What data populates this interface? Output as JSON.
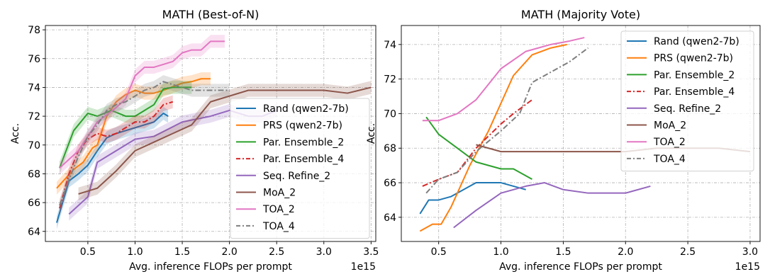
{
  "chart_data": [
    {
      "type": "line",
      "title": "MATH (Best-of-N)",
      "xlabel": "Avg. inference FLOPs per prompt",
      "ylabel": "Acc.",
      "x_offset_label": "1e15",
      "xlim": [
        0.05,
        3.55
      ],
      "ylim": [
        63.3,
        78.3
      ],
      "xticks": [
        0.5,
        1.0,
        1.5,
        2.0,
        2.5,
        3.0,
        3.5
      ],
      "xtick_labels": [
        "0.5",
        "1.0",
        "1.5",
        "2.0",
        "2.5",
        "3.0",
        "3.5"
      ],
      "yticks": [
        64,
        66,
        68,
        70,
        72,
        74,
        76,
        78
      ],
      "ytick_labels": [
        "64",
        "66",
        "68",
        "70",
        "72",
        "74",
        "76",
        "78"
      ],
      "grid": true,
      "legend_position": "lower-right",
      "series": [
        {
          "name": "Rand (qwen2-7b)",
          "color": "#1f77b4",
          "dash": "solid",
          "band": true,
          "x": [
            0.17,
            0.3,
            0.4,
            0.5,
            0.6,
            0.7,
            0.8,
            0.9,
            1.0,
            1.1,
            1.2,
            1.3,
            1.35
          ],
          "y": [
            64.6,
            67.5,
            68.0,
            68.6,
            69.6,
            70.5,
            70.8,
            71.0,
            71.2,
            71.4,
            71.6,
            72.2,
            72.0
          ]
        },
        {
          "name": "PRS (qwen2-7b)",
          "color": "#ff7f0e",
          "dash": "solid",
          "band": true,
          "x": [
            0.17,
            0.35,
            0.45,
            0.55,
            0.6,
            0.7,
            0.8,
            0.9,
            1.0,
            1.1,
            1.2,
            1.3,
            1.5,
            1.6,
            1.7,
            1.8
          ],
          "y": [
            67.0,
            68.3,
            68.8,
            69.8,
            70.0,
            72.0,
            73.0,
            73.5,
            73.8,
            73.6,
            73.6,
            73.8,
            74.3,
            74.4,
            74.6,
            74.6
          ]
        },
        {
          "name": "Par. Ensemble_2",
          "color": "#2ca02c",
          "dash": "solid",
          "band": true,
          "x": [
            0.2,
            0.35,
            0.5,
            0.6,
            0.75,
            0.9,
            1.0,
            1.1,
            1.2,
            1.3,
            1.4,
            1.6
          ],
          "y": [
            68.4,
            71.0,
            72.2,
            72.0,
            72.4,
            72.0,
            72.0,
            72.4,
            72.8,
            73.9,
            74.0,
            74.0
          ]
        },
        {
          "name": "Par. Ensemble_4",
          "color": "#d62728",
          "dash": "dashdot",
          "band": true,
          "x": [
            0.2,
            0.3,
            0.4,
            0.5,
            0.6,
            0.7,
            0.8,
            0.9,
            1.0,
            1.1,
            1.2,
            1.3,
            1.4
          ],
          "y": [
            65.6,
            68.0,
            69.6,
            70.4,
            70.8,
            70.6,
            70.8,
            71.2,
            71.6,
            71.6,
            72.0,
            72.8,
            73.0
          ]
        },
        {
          "name": "Seq. Refine_2",
          "color": "#9467bd",
          "dash": "solid",
          "band": true,
          "x": [
            0.3,
            0.5,
            0.6,
            0.7,
            0.8,
            1.0,
            1.2,
            1.5,
            1.8,
            2.0,
            2.2,
            2.35,
            2.5
          ],
          "y": [
            65.2,
            66.4,
            68.8,
            69.2,
            69.6,
            70.4,
            70.6,
            71.6,
            72.0,
            72.4,
            72.0,
            72.0,
            72.4
          ]
        },
        {
          "name": "MoA_2",
          "color": "#8c564b",
          "dash": "solid",
          "band": true,
          "x": [
            0.4,
            0.6,
            0.8,
            1.0,
            1.2,
            1.4,
            1.6,
            1.8,
            2.0,
            2.2,
            2.5,
            3.0,
            3.25,
            3.5
          ],
          "y": [
            66.6,
            67.0,
            68.2,
            69.6,
            70.2,
            70.8,
            71.4,
            73.0,
            73.4,
            73.8,
            73.8,
            73.8,
            73.6,
            74.0
          ]
        },
        {
          "name": "TOA_2",
          "color": "#e377c2",
          "dash": "solid",
          "band": true,
          "x": [
            0.2,
            0.4,
            0.6,
            0.8,
            0.9,
            1.0,
            1.1,
            1.2,
            1.3,
            1.4,
            1.5,
            1.6,
            1.7,
            1.8,
            1.95
          ],
          "y": [
            68.4,
            69.6,
            71.6,
            72.6,
            73.2,
            74.8,
            75.4,
            75.4,
            75.6,
            75.8,
            76.4,
            76.6,
            76.6,
            77.2,
            77.2
          ]
        },
        {
          "name": "TOA_4",
          "color": "#7f7f7f",
          "dash": "dashdot",
          "band": true,
          "x": [
            0.2,
            0.3,
            0.4,
            0.5,
            0.6,
            0.7,
            0.8,
            0.9,
            1.0,
            1.1,
            1.2,
            1.3,
            1.4,
            1.6,
            1.8,
            2.0
          ],
          "y": [
            65.8,
            67.6,
            69.2,
            70.6,
            71.4,
            72.4,
            72.8,
            73.0,
            73.4,
            73.8,
            74.0,
            74.4,
            74.2,
            73.8,
            73.8,
            73.8
          ]
        }
      ]
    },
    {
      "type": "line",
      "title": "MATH (Majority Vote)",
      "xlabel": "Avg. inference FLOPs per prompt",
      "ylabel": "Acc.",
      "x_offset_label": "1e15",
      "xlim": [
        0.2,
        3.08
      ],
      "ylim": [
        62.6,
        75.1
      ],
      "xticks": [
        0.5,
        1.0,
        1.5,
        2.0,
        2.5,
        3.0
      ],
      "xtick_labels": [
        "0.5",
        "1.0",
        "1.5",
        "2.0",
        "2.5",
        "3.0"
      ],
      "yticks": [
        64,
        66,
        68,
        70,
        72,
        74
      ],
      "ytick_labels": [
        "64",
        "66",
        "68",
        "70",
        "72",
        "74"
      ],
      "grid": true,
      "legend_position": "upper-right",
      "series": [
        {
          "name": "Rand (qwen2-7b)",
          "color": "#1f77b4",
          "dash": "solid",
          "band": false,
          "x": [
            0.35,
            0.42,
            0.5,
            0.6,
            0.8,
            1.0,
            1.1,
            1.2
          ],
          "y": [
            64.2,
            65.0,
            65.0,
            65.2,
            66.0,
            66.0,
            65.8,
            65.6
          ]
        },
        {
          "name": "PRS (qwen2-7b)",
          "color": "#ff7f0e",
          "dash": "solid",
          "band": false,
          "x": [
            0.35,
            0.45,
            0.52,
            0.6,
            0.75,
            0.9,
            1.1,
            1.25,
            1.4,
            1.53
          ],
          "y": [
            63.2,
            63.6,
            63.6,
            64.6,
            67.0,
            69.0,
            72.2,
            73.4,
            73.8,
            74.0
          ]
        },
        {
          "name": "Par. Ensemble_2",
          "color": "#2ca02c",
          "dash": "solid",
          "band": false,
          "x": [
            0.4,
            0.5,
            0.65,
            0.8,
            1.0,
            1.1,
            1.25
          ],
          "y": [
            69.8,
            68.8,
            68.0,
            67.2,
            66.8,
            66.8,
            66.2
          ]
        },
        {
          "name": "Par. Ensemble_4",
          "color": "#d62728",
          "dash": "dashdot",
          "band": false,
          "x": [
            0.37,
            0.5,
            0.65,
            0.8,
            1.0,
            1.1,
            1.25
          ],
          "y": [
            65.8,
            66.2,
            66.6,
            68.0,
            69.4,
            70.0,
            70.8
          ]
        },
        {
          "name": "Seq. Refine_2",
          "color": "#9467bd",
          "dash": "solid",
          "band": false,
          "x": [
            0.62,
            0.8,
            1.0,
            1.2,
            1.35,
            1.5,
            1.7,
            2.0,
            2.2
          ],
          "y": [
            63.4,
            64.4,
            65.4,
            65.8,
            66.0,
            65.6,
            65.4,
            65.4,
            65.8
          ]
        },
        {
          "name": "MoA_2",
          "color": "#8c564b",
          "dash": "solid",
          "band": false,
          "x": [
            0.8,
            1.0,
            1.5,
            2.0,
            2.25,
            2.5,
            2.75,
            3.0
          ],
          "y": [
            68.2,
            67.8,
            67.8,
            67.8,
            68.0,
            68.0,
            68.0,
            67.8
          ]
        },
        {
          "name": "TOA_2",
          "color": "#e377c2",
          "dash": "solid",
          "band": false,
          "x": [
            0.37,
            0.5,
            0.65,
            0.8,
            1.0,
            1.2,
            1.4,
            1.55,
            1.67
          ],
          "y": [
            69.6,
            69.6,
            70.0,
            70.8,
            72.6,
            73.6,
            74.0,
            74.2,
            74.4
          ]
        },
        {
          "name": "TOA_4",
          "color": "#7f7f7f",
          "dash": "dashdot",
          "band": false,
          "x": [
            0.4,
            0.5,
            0.65,
            0.8,
            1.0,
            1.15,
            1.25,
            1.4,
            1.55,
            1.7
          ],
          "y": [
            65.4,
            66.2,
            66.6,
            67.8,
            69.0,
            70.0,
            71.8,
            72.4,
            73.0,
            73.8
          ]
        }
      ]
    }
  ]
}
